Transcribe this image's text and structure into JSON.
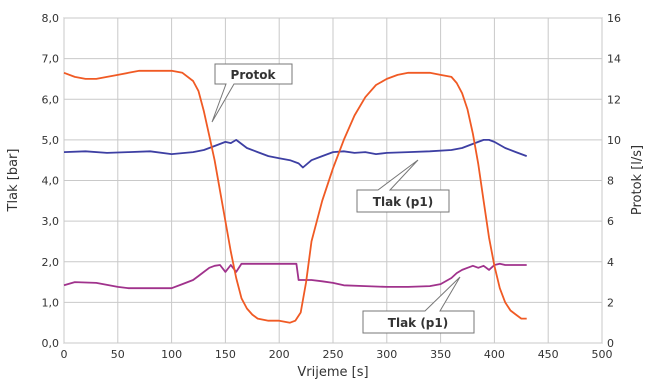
{
  "chart_data": {
    "type": "line",
    "xlabel": "Vrijeme [s]",
    "ylabel_left": "Tlak [bar]",
    "ylabel_right": "Protok [l/s]",
    "xlim": [
      0,
      500
    ],
    "ylim_left": [
      0,
      8
    ],
    "ylim_right": [
      0,
      16
    ],
    "x_ticks": [
      "0",
      "50",
      "100",
      "150",
      "200",
      "250",
      "300",
      "350",
      "400",
      "450",
      "500"
    ],
    "y_left_ticks": [
      "0,0",
      "1,0",
      "2,0",
      "3,0",
      "4,0",
      "5,0",
      "6,0",
      "7,0",
      "8,0"
    ],
    "y_right_ticks": [
      "0",
      "2",
      "4",
      "6",
      "8",
      "10",
      "12",
      "14",
      "16"
    ],
    "grid": true,
    "series": [
      {
        "name": "Protok",
        "axis": "right",
        "color": "#f05a24",
        "x": [
          0,
          10,
          20,
          30,
          40,
          50,
          60,
          70,
          80,
          90,
          100,
          110,
          120,
          125,
          130,
          135,
          140,
          145,
          150,
          155,
          160,
          165,
          170,
          175,
          180,
          190,
          200,
          210,
          215,
          220,
          225,
          230,
          240,
          250,
          260,
          270,
          280,
          290,
          300,
          310,
          320,
          330,
          340,
          350,
          360,
          365,
          370,
          375,
          380,
          385,
          390,
          395,
          400,
          405,
          410,
          415,
          420,
          425,
          430
        ],
        "y": [
          13.3,
          13.1,
          13.0,
          13.0,
          13.1,
          13.2,
          13.3,
          13.4,
          13.4,
          13.4,
          13.4,
          13.3,
          12.9,
          12.4,
          11.4,
          10.2,
          9.0,
          7.5,
          6.0,
          4.5,
          3.2,
          2.2,
          1.7,
          1.4,
          1.2,
          1.1,
          1.1,
          1.0,
          1.1,
          1.5,
          3.0,
          5.0,
          7.0,
          8.6,
          10.0,
          11.2,
          12.1,
          12.7,
          13.0,
          13.2,
          13.3,
          13.3,
          13.3,
          13.2,
          13.1,
          12.8,
          12.3,
          11.5,
          10.3,
          8.8,
          7.0,
          5.2,
          3.8,
          2.7,
          2.0,
          1.6,
          1.4,
          1.2,
          1.2
        ]
      },
      {
        "name": "Tlak (p1)",
        "axis": "left",
        "color": "#3d3fa3",
        "x": [
          0,
          20,
          40,
          60,
          80,
          100,
          120,
          130,
          140,
          150,
          155,
          160,
          170,
          180,
          190,
          200,
          210,
          218,
          222,
          230,
          240,
          250,
          260,
          270,
          280,
          290,
          300,
          320,
          340,
          360,
          370,
          380,
          390,
          395,
          400,
          410,
          420,
          430
        ],
        "y": [
          4.7,
          4.72,
          4.68,
          4.7,
          4.72,
          4.65,
          4.7,
          4.75,
          4.85,
          4.95,
          4.92,
          5.0,
          4.8,
          4.7,
          4.6,
          4.55,
          4.5,
          4.42,
          4.32,
          4.5,
          4.6,
          4.7,
          4.72,
          4.68,
          4.7,
          4.65,
          4.68,
          4.7,
          4.72,
          4.75,
          4.8,
          4.9,
          5.0,
          5.0,
          4.95,
          4.8,
          4.7,
          4.6
        ]
      },
      {
        "name": "Tlak (p1)",
        "axis": "left",
        "color": "#a0328c",
        "x": [
          0,
          10,
          30,
          50,
          60,
          80,
          100,
          110,
          120,
          125,
          130,
          135,
          140,
          145,
          150,
          155,
          160,
          165,
          170,
          175,
          180,
          190,
          200,
          210,
          216,
          218,
          220,
          230,
          240,
          250,
          260,
          280,
          300,
          320,
          340,
          350,
          360,
          365,
          370,
          375,
          380,
          385,
          390,
          395,
          400,
          405,
          410,
          420,
          430
        ],
        "y": [
          1.42,
          1.5,
          1.48,
          1.38,
          1.35,
          1.35,
          1.35,
          1.45,
          1.55,
          1.65,
          1.75,
          1.85,
          1.9,
          1.92,
          1.75,
          1.92,
          1.75,
          1.95,
          1.95,
          1.95,
          1.95,
          1.95,
          1.95,
          1.95,
          1.95,
          1.55,
          1.55,
          1.55,
          1.52,
          1.48,
          1.42,
          1.4,
          1.38,
          1.38,
          1.4,
          1.45,
          1.6,
          1.72,
          1.8,
          1.85,
          1.9,
          1.85,
          1.9,
          1.8,
          1.92,
          1.95,
          1.92,
          1.92,
          1.92
        ]
      }
    ],
    "annotations": [
      {
        "text": "Protok",
        "series": 0
      },
      {
        "text": "Tlak (p1)",
        "series": 1
      },
      {
        "text": "Tlak (p1)",
        "series": 2
      }
    ]
  }
}
